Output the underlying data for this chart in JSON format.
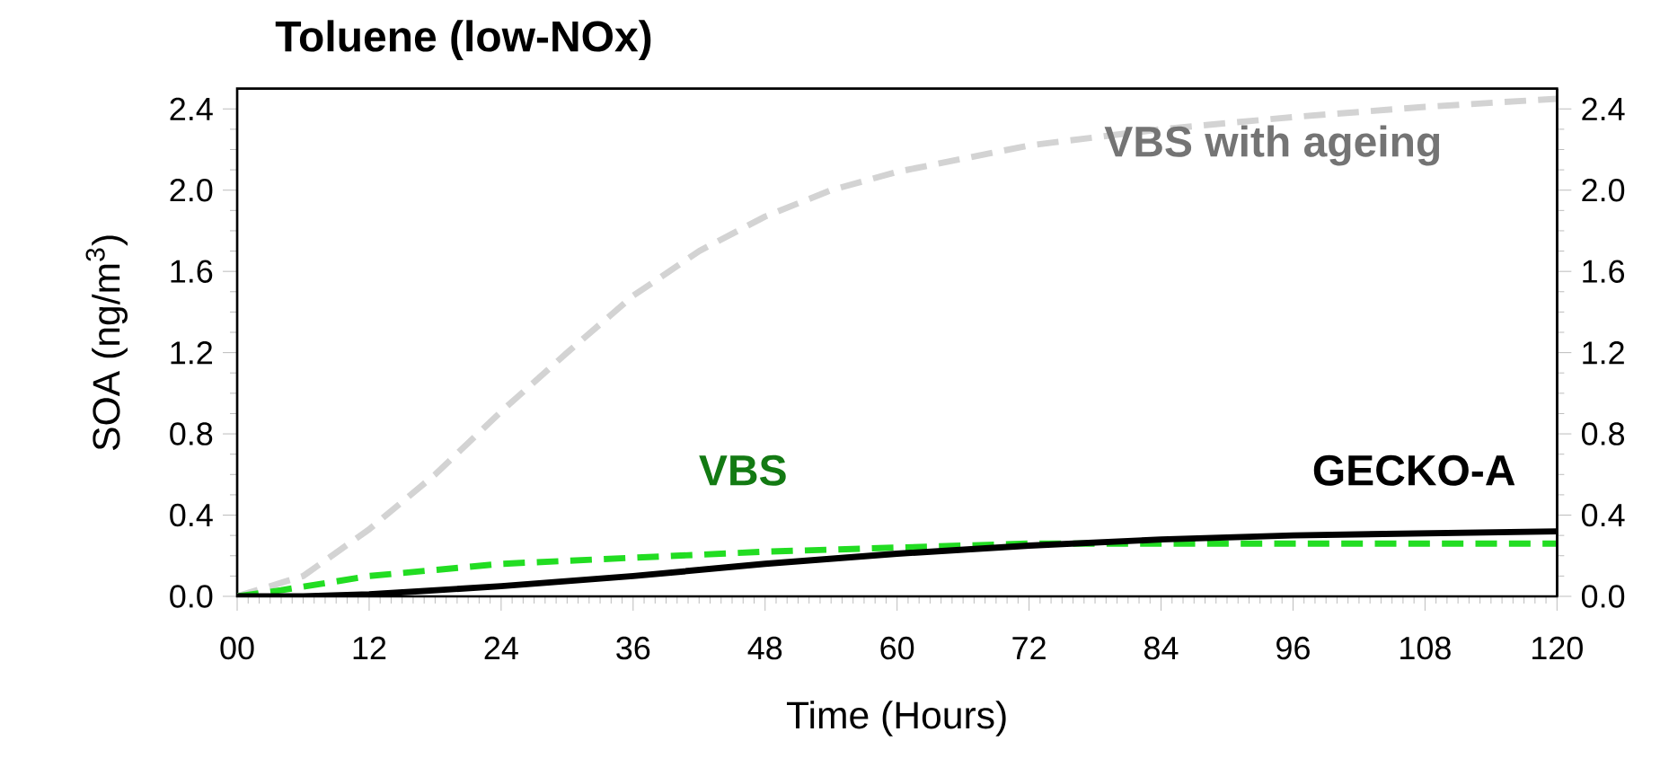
{
  "chart_data": {
    "type": "line",
    "title": "Toluene (low-NOx)",
    "xlabel": "Time (Hours)",
    "ylabel": "SOA (ng/m$^{3}$)",
    "xlim": [
      0,
      120
    ],
    "xticks": [
      {
        "value": 0,
        "label": "00"
      },
      12,
      24,
      36,
      48,
      60,
      72,
      84,
      96,
      108,
      120
    ],
    "ylim": [
      0,
      2.5
    ],
    "yticks": [
      {
        "value": 0,
        "label": "0.0"
      },
      0.4,
      0.8,
      1.2,
      1.6,
      {
        "value": 2,
        "label": "2.0"
      },
      2.4
    ],
    "y2lim": [
      0,
      2.5
    ],
    "y2ticks": [
      {
        "value": 0,
        "label": "0.0"
      },
      0.4,
      0.8,
      1.2,
      1.6,
      {
        "value": 2,
        "label": "2.0"
      },
      2.4
    ],
    "marker": "none",
    "series": [
      {
        "name": "VBS with ageing",
        "color": "#d3d3d3",
        "line_style": "dashed",
        "x": [
          0,
          6,
          12,
          18,
          24,
          30,
          36,
          42,
          48,
          54,
          60,
          72,
          84,
          96,
          108,
          120
        ],
        "values": [
          0,
          0.1,
          0.33,
          0.6,
          0.91,
          1.2,
          1.48,
          1.7,
          1.87,
          2.0,
          2.09,
          2.22,
          2.3,
          2.36,
          2.41,
          2.45
        ]
      },
      {
        "name": "VBS",
        "color": "#22dd22",
        "line_style": "dashed",
        "x": [
          0,
          4,
          12,
          24,
          36,
          48,
          60,
          72,
          84,
          96,
          108,
          120
        ],
        "values": [
          0,
          0.03,
          0.1,
          0.16,
          0.19,
          0.22,
          0.24,
          0.26,
          0.26,
          0.26,
          0.26,
          0.26
        ]
      },
      {
        "name": "GECKO-A",
        "color": "#000000",
        "line_style": "solid",
        "x": [
          0,
          6,
          12,
          24,
          36,
          48,
          60,
          72,
          84,
          96,
          108,
          120
        ],
        "values": [
          0,
          0,
          0.01,
          0.05,
          0.1,
          0.16,
          0.21,
          0.25,
          0.28,
          0.3,
          0.31,
          0.32
        ]
      }
    ]
  }
}
